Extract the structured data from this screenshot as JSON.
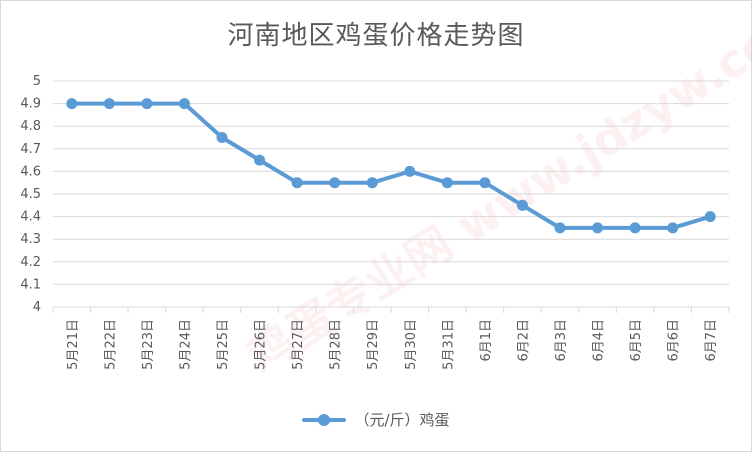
{
  "chart_data": {
    "type": "line",
    "title": "河南地区鸡蛋价格走势图",
    "categories": [
      "5月21日",
      "5月22日",
      "5月23日",
      "5月24日",
      "5月25日",
      "5月26日",
      "5月27日",
      "5月28日",
      "5月29日",
      "5月30日",
      "5月31日",
      "6月1日",
      "6月2日",
      "6月3日",
      "6月4日",
      "6月5日",
      "6月6日",
      "6月7日"
    ],
    "series": [
      {
        "name": "（元/斤）鸡蛋",
        "values": [
          4.9,
          4.9,
          4.9,
          4.9,
          4.75,
          4.65,
          4.55,
          4.55,
          4.55,
          4.6,
          4.55,
          4.55,
          4.45,
          4.35,
          4.35,
          4.35,
          4.35,
          4.4
        ]
      }
    ],
    "ylim": [
      4,
      5
    ],
    "yticks": [
      "5",
      "4.9",
      "4.8",
      "4.7",
      "4.6",
      "4.5",
      "4.4",
      "4.3",
      "4.2",
      "4.1",
      "4"
    ],
    "xlabel": "",
    "ylabel": "",
    "grid": true,
    "legend_position": "bottom",
    "colors": {
      "series": "#5b9bd5",
      "grid": "#d9d9d9",
      "text": "#595959"
    }
  },
  "watermark": {
    "text": "鸡蛋专业网 www.jdzyw.com"
  }
}
